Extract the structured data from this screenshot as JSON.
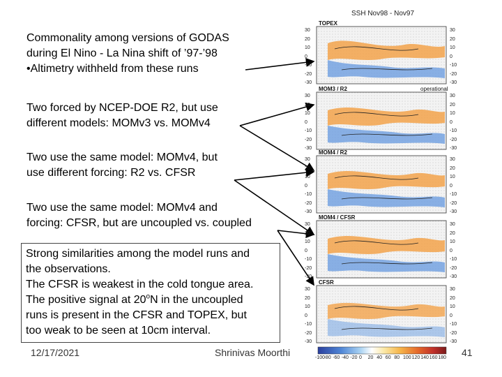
{
  "blocks": {
    "b1": [
      "Commonality among versions of GODAS",
      " during El Nino - La Nina shift of ’97-’98",
      "•Altimetry withheld from these runs"
    ],
    "b2": [
      "Two forced by NCEP-DOE R2, but use",
      "different models: MOMv3 vs. MOMv4"
    ],
    "b3": [
      "Two use the same model: MOMv4, but",
      "use different forcing: R2 vs. CFSR"
    ],
    "b4": [
      "Two use the same model: MOMv4 and",
      "forcing: CFSR, but are uncoupled vs. coupled"
    ],
    "b5": {
      "l1": "Strong similarities among the model runs and",
      "l2": "the observations.",
      "l3": "The CFSR is weakest in the cold tongue area.",
      "l4a": "The positive signal at 20",
      "l4sup": "o",
      "l4b": "N in the uncoupled",
      "l5": "runs is present in the CFSR and TOPEX, but",
      "l6": "too weak to be seen at 10cm interval."
    }
  },
  "footer": {
    "date": "12/17/2021",
    "author": "Shrinivas Moorthi",
    "page": "41"
  },
  "figure": {
    "title": "SSH  Nov98 - Nov97",
    "panels": [
      "TOPEX",
      "MOM3 / R2",
      "MOM4 / R2",
      "MOM4 / CFSR",
      "CFSR"
    ],
    "operational_label": "operational",
    "lat_ticks": [
      "30",
      "20",
      "10",
      "0",
      "-10",
      "-20",
      "-30"
    ],
    "colorbar_ticks": [
      "-100",
      "-80",
      "-60",
      "-40",
      "-20",
      "0",
      "20",
      "40",
      "60",
      "80",
      "100",
      "120",
      "140",
      "160",
      "180"
    ]
  },
  "colors": {
    "arrow": "#000000",
    "cold": "#3a6fc4",
    "warm": "#e2762a"
  }
}
